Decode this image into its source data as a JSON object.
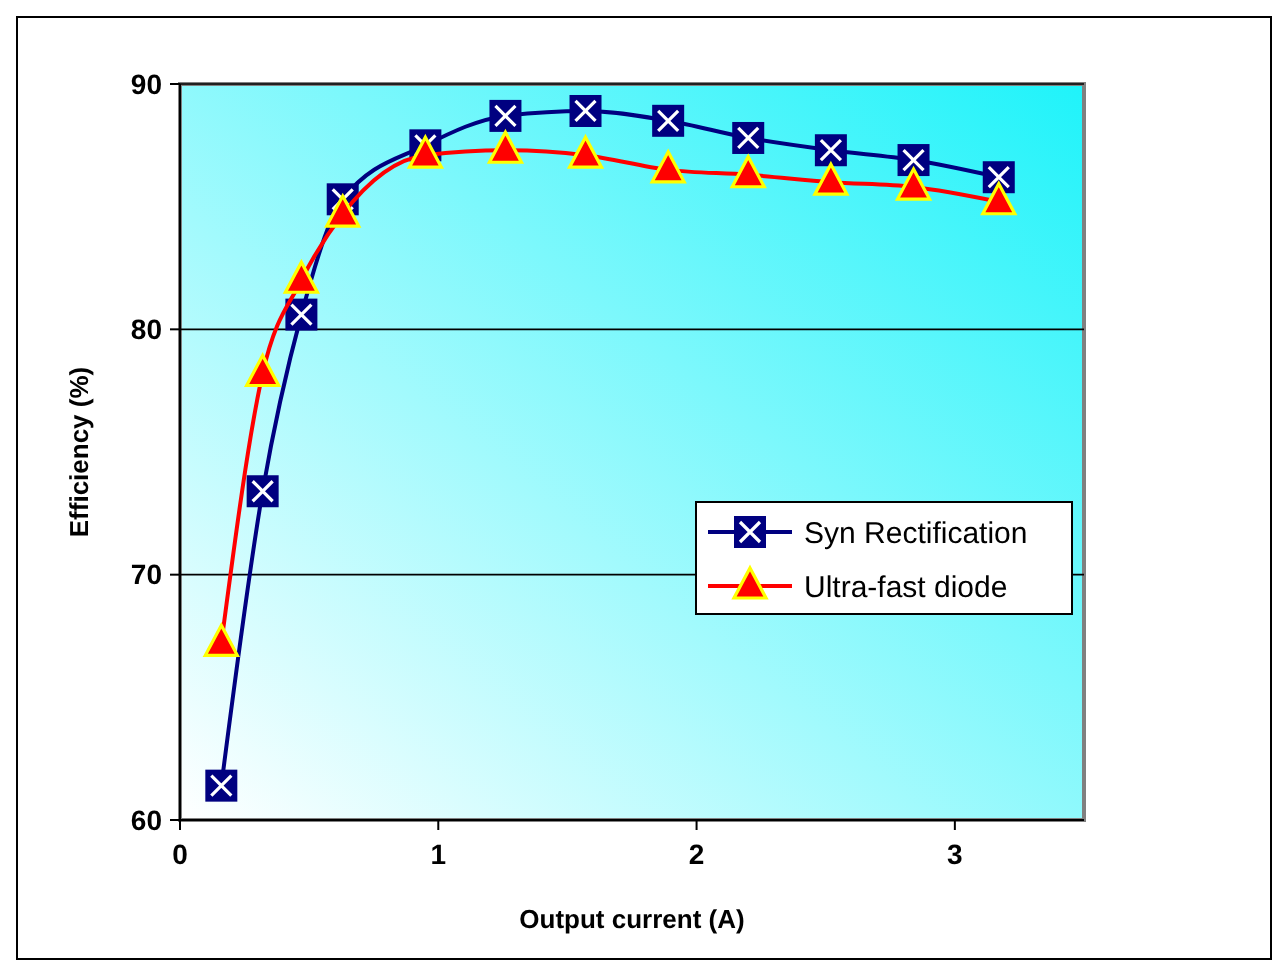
{
  "chart_data": {
    "type": "line",
    "xlabel": "Output current (A)",
    "ylabel": "Efficiency (%)",
    "x": [
      0.16,
      0.32,
      0.47,
      0.63,
      0.95,
      1.26,
      1.57,
      1.89,
      2.2,
      2.52,
      2.84,
      3.17
    ],
    "series": [
      {
        "name": "Syn Rectification",
        "color": "#000080",
        "marker": "square",
        "values": [
          61.4,
          73.4,
          80.6,
          85.3,
          87.5,
          88.7,
          88.9,
          88.5,
          87.8,
          87.3,
          86.9,
          86.2
        ]
      },
      {
        "name": "Ultra-fast diode",
        "color": "#ff0000",
        "marker": "triangle",
        "values": [
          67.2,
          78.2,
          82.0,
          84.7,
          87.1,
          87.3,
          87.1,
          86.5,
          86.3,
          86.0,
          85.8,
          85.2
        ]
      }
    ],
    "xlim": [
      0,
      3.5
    ],
    "xticks": [
      0,
      1,
      2,
      3
    ],
    "ylim": [
      60,
      90
    ],
    "yticks": [
      60,
      70,
      80,
      90
    ],
    "grid": "y",
    "legend": "right",
    "line_style": "solid"
  }
}
